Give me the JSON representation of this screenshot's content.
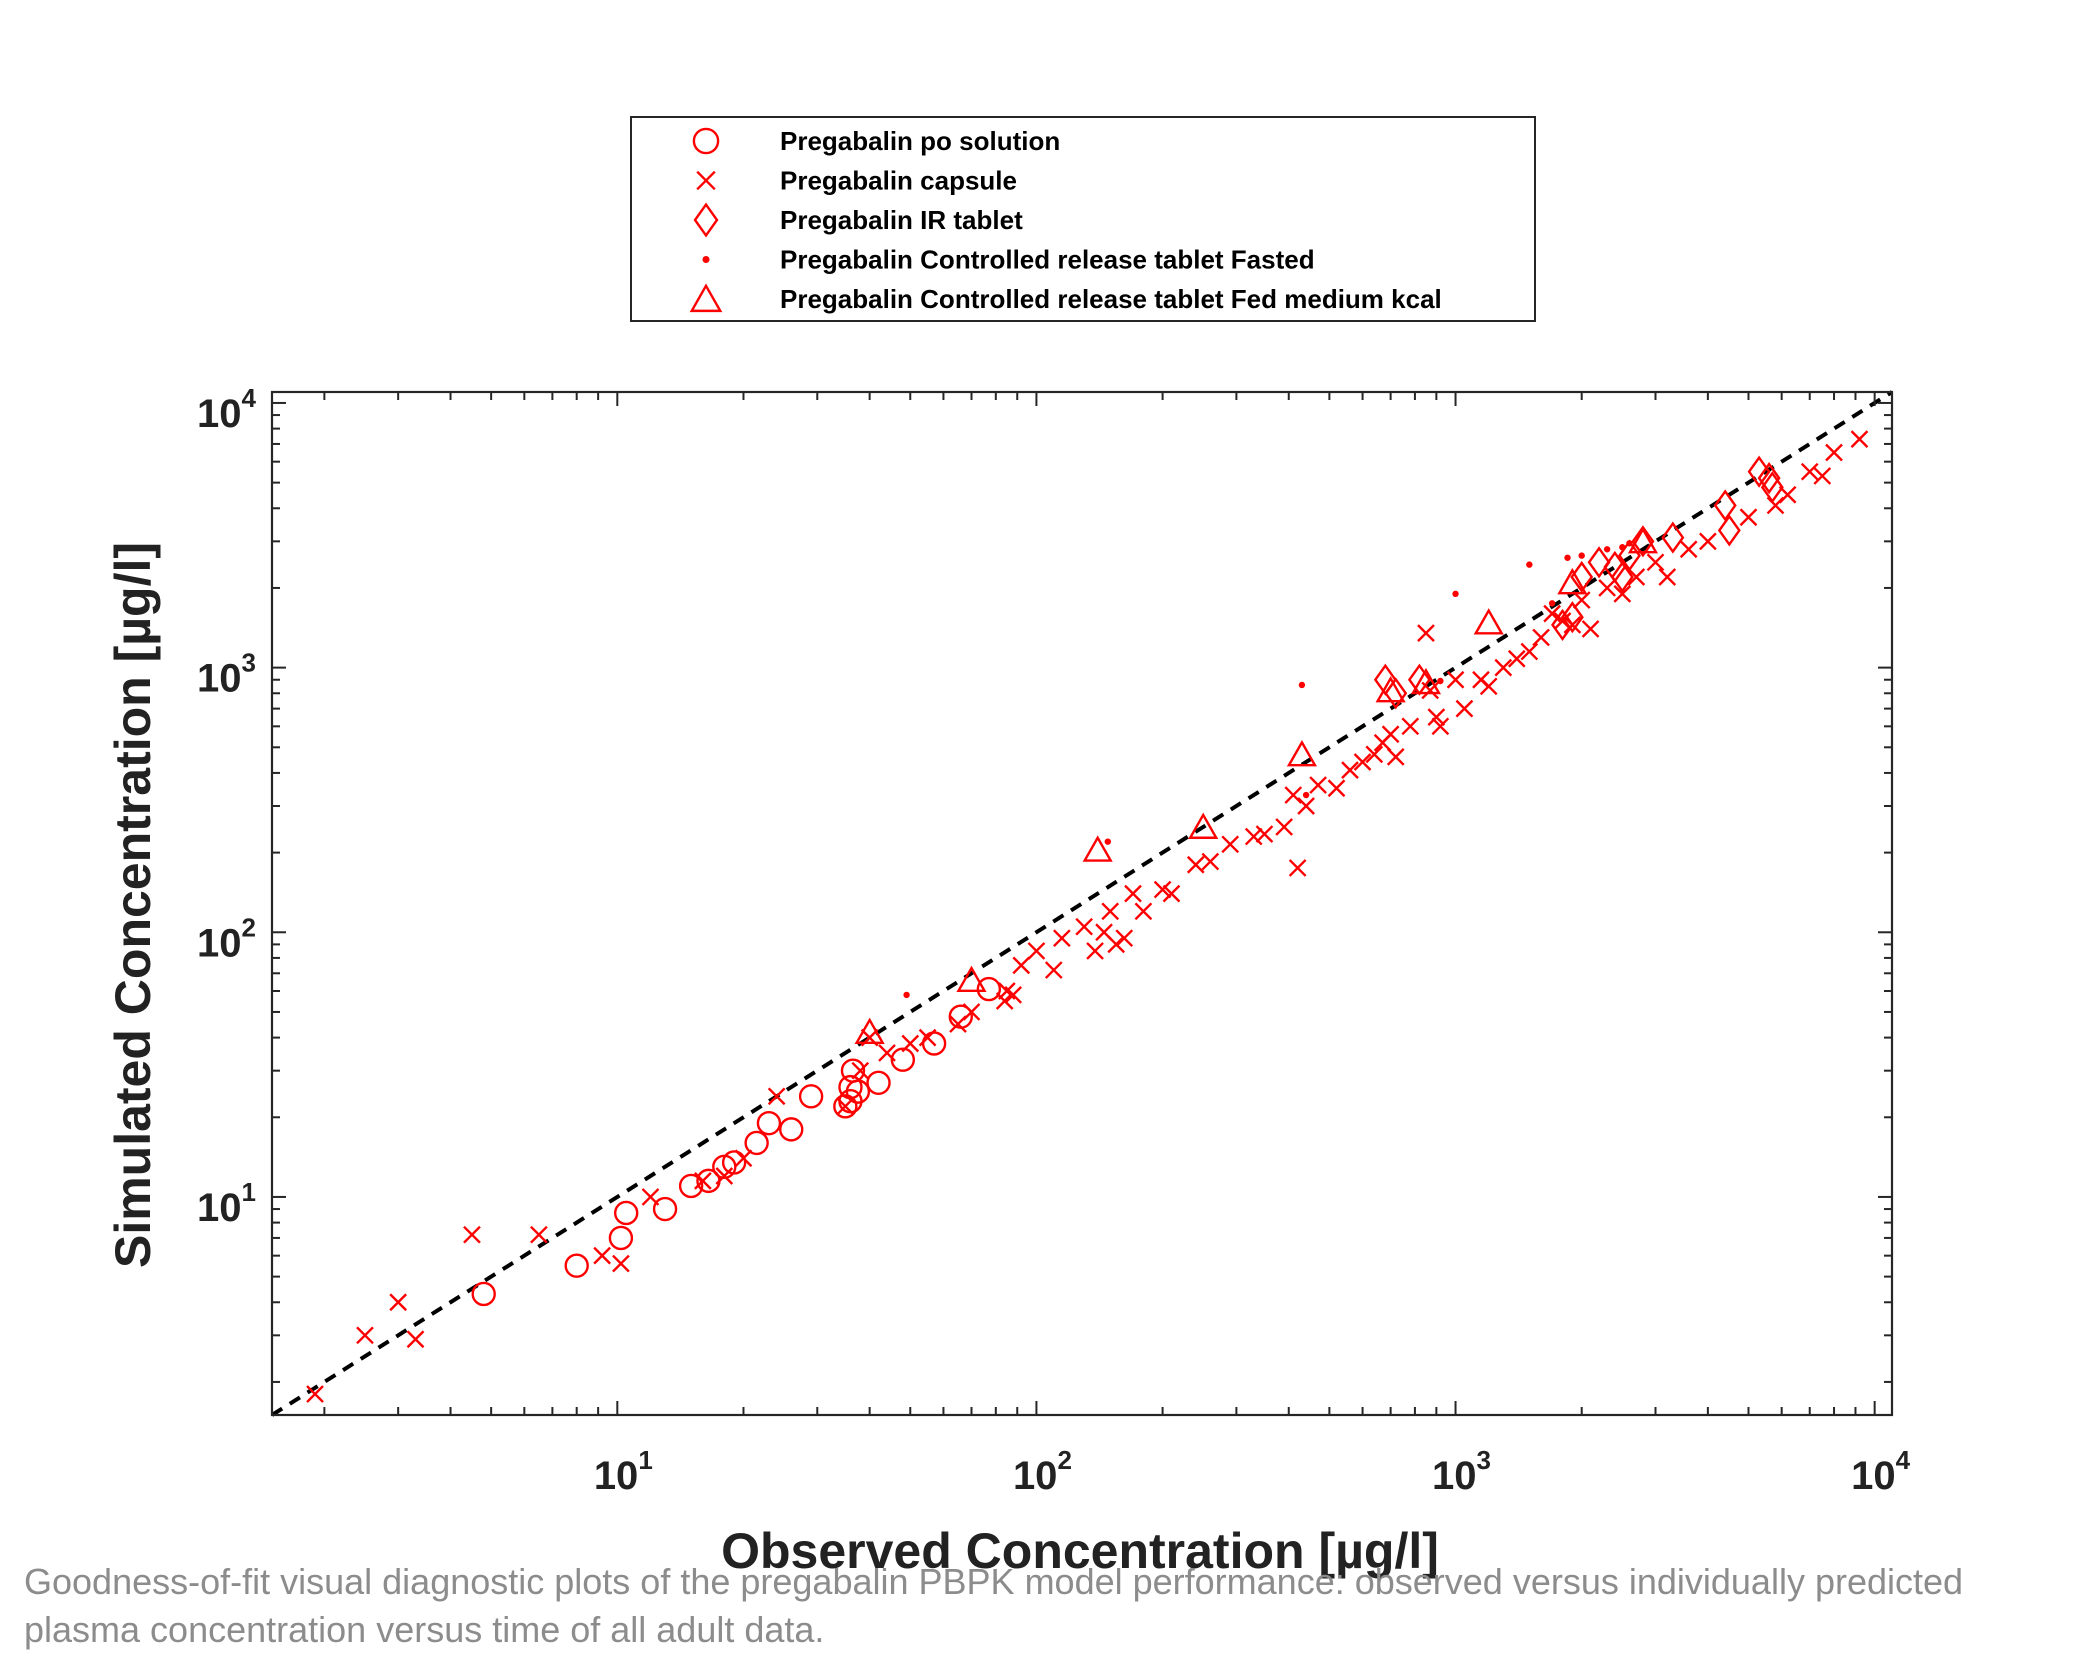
{
  "caption": "Goodness-of-fit visual diagnostic plots of the pregabalin PBPK model performance: observed versus individually predicted plasma concentration versus time of all adult data.",
  "chart_data": {
    "type": "scatter",
    "xlabel": "Observed Concentration [µg/l]",
    "ylabel": "Simulated Concentration [µg/l]",
    "xscale": "log",
    "yscale": "log",
    "xlim": [
      1.5,
      11000
    ],
    "ylim": [
      1.5,
      11000
    ],
    "xticks": [
      10,
      100,
      1000,
      10000
    ],
    "yticks": [
      10,
      100,
      1000,
      10000
    ],
    "tick_labels": [
      {
        "base": "10",
        "exp": "1"
      },
      {
        "base": "10",
        "exp": "2"
      },
      {
        "base": "10",
        "exp": "3"
      },
      {
        "base": "10",
        "exp": "4"
      }
    ],
    "grid": false,
    "legend_position": "top-center-outside",
    "identity_line": {
      "style": "dashed",
      "color": "#000000"
    },
    "marker_color": "#ff0000",
    "series": [
      {
        "name": "Pregabalin po solution",
        "marker": "circle",
        "points": [
          [
            4.8,
            4.3
          ],
          [
            8,
            5.5
          ],
          [
            10.2,
            7
          ],
          [
            10.5,
            8.7
          ],
          [
            13,
            9
          ],
          [
            15,
            11
          ],
          [
            16.5,
            11.5
          ],
          [
            18,
            13
          ],
          [
            19,
            13.5
          ],
          [
            21.5,
            16
          ],
          [
            23,
            19
          ],
          [
            26,
            18
          ],
          [
            29,
            24
          ],
          [
            35,
            22
          ],
          [
            36,
            23
          ],
          [
            36,
            26
          ],
          [
            36.5,
            30
          ],
          [
            37.5,
            25
          ],
          [
            42,
            27
          ],
          [
            48,
            33
          ],
          [
            57,
            38
          ],
          [
            66,
            48
          ],
          [
            77,
            61
          ]
        ]
      },
      {
        "name": "Pregabalin capsule",
        "marker": "x",
        "points": [
          [
            1.9,
            1.8
          ],
          [
            2.5,
            3
          ],
          [
            3,
            4
          ],
          [
            3.3,
            2.9
          ],
          [
            4.5,
            7.2
          ],
          [
            6.5,
            7.2
          ],
          [
            9.2,
            6
          ],
          [
            10.2,
            5.6
          ],
          [
            12,
            10
          ],
          [
            16,
            11.5
          ],
          [
            18,
            12
          ],
          [
            20,
            14
          ],
          [
            24,
            24
          ],
          [
            35,
            22
          ],
          [
            38,
            30
          ],
          [
            40,
            40
          ],
          [
            44,
            35
          ],
          [
            50,
            38
          ],
          [
            55,
            40
          ],
          [
            65,
            45
          ],
          [
            70,
            50
          ],
          [
            84,
            55
          ],
          [
            85,
            60
          ],
          [
            88,
            58
          ],
          [
            92,
            75
          ],
          [
            100,
            85
          ],
          [
            110,
            72
          ],
          [
            115,
            95
          ],
          [
            130,
            105
          ],
          [
            138,
            85
          ],
          [
            145,
            100
          ],
          [
            150,
            120
          ],
          [
            155,
            90
          ],
          [
            162,
            95
          ],
          [
            170,
            140
          ],
          [
            180,
            120
          ],
          [
            200,
            145
          ],
          [
            210,
            140
          ],
          [
            240,
            180
          ],
          [
            260,
            185
          ],
          [
            290,
            215
          ],
          [
            330,
            230
          ],
          [
            350,
            235
          ],
          [
            390,
            250
          ],
          [
            410,
            330
          ],
          [
            420,
            175
          ],
          [
            440,
            300
          ],
          [
            470,
            360
          ],
          [
            520,
            350
          ],
          [
            560,
            410
          ],
          [
            600,
            440
          ],
          [
            640,
            470
          ],
          [
            670,
            520
          ],
          [
            700,
            560
          ],
          [
            720,
            460
          ],
          [
            780,
            600
          ],
          [
            850,
            1350
          ],
          [
            870,
            820
          ],
          [
            900,
            650
          ],
          [
            920,
            600
          ],
          [
            1000,
            900
          ],
          [
            1050,
            700
          ],
          [
            1150,
            900
          ],
          [
            1200,
            850
          ],
          [
            1300,
            1000
          ],
          [
            1400,
            1080
          ],
          [
            1500,
            1150
          ],
          [
            1600,
            1300
          ],
          [
            1700,
            1600
          ],
          [
            1800,
            1500
          ],
          [
            1900,
            1450
          ],
          [
            2000,
            1800
          ],
          [
            2100,
            1400
          ],
          [
            2300,
            2000
          ],
          [
            2500,
            1900
          ],
          [
            2700,
            2200
          ],
          [
            3000,
            2500
          ],
          [
            3200,
            2200
          ],
          [
            3600,
            2800
          ],
          [
            4000,
            3000
          ],
          [
            5000,
            3700
          ],
          [
            5800,
            4100
          ],
          [
            6200,
            4500
          ],
          [
            7000,
            5500
          ],
          [
            7500,
            5300
          ],
          [
            8000,
            6500
          ],
          [
            9200,
            7300
          ]
        ]
      },
      {
        "name": "Pregabalin IR tablet",
        "marker": "diamond",
        "points": [
          [
            680,
            900
          ],
          [
            720,
            800
          ],
          [
            820,
            900
          ],
          [
            1800,
            1450
          ],
          [
            1900,
            1550
          ],
          [
            2000,
            2200
          ],
          [
            2200,
            2500
          ],
          [
            2400,
            2400
          ],
          [
            2500,
            2200
          ],
          [
            2600,
            2650
          ],
          [
            2800,
            3000
          ],
          [
            3300,
            3100
          ],
          [
            4400,
            4100
          ],
          [
            4500,
            3300
          ],
          [
            5300,
            5500
          ],
          [
            5600,
            5200
          ],
          [
            5700,
            4800
          ]
        ]
      },
      {
        "name": "Pregabalin Controlled release tablet Fasted",
        "marker": "dot",
        "points": [
          [
            49,
            58
          ],
          [
            148,
            220
          ],
          [
            430,
            860
          ],
          [
            440,
            330
          ],
          [
            920,
            890
          ],
          [
            1000,
            1900
          ],
          [
            1500,
            2450
          ],
          [
            1700,
            1750
          ],
          [
            1850,
            2600
          ],
          [
            2000,
            2650
          ],
          [
            2300,
            2800
          ],
          [
            2500,
            2850
          ],
          [
            2600,
            2950
          ]
        ]
      },
      {
        "name": "Pregabalin Controlled release tablet Fed medium kcal",
        "marker": "triangle",
        "points": [
          [
            40,
            42
          ],
          [
            70,
            66
          ],
          [
            140,
            205
          ],
          [
            250,
            250
          ],
          [
            430,
            470
          ],
          [
            700,
            820
          ],
          [
            850,
            880
          ],
          [
            1200,
            1480
          ],
          [
            1900,
            2100
          ],
          [
            2800,
            3000
          ]
        ]
      }
    ]
  }
}
